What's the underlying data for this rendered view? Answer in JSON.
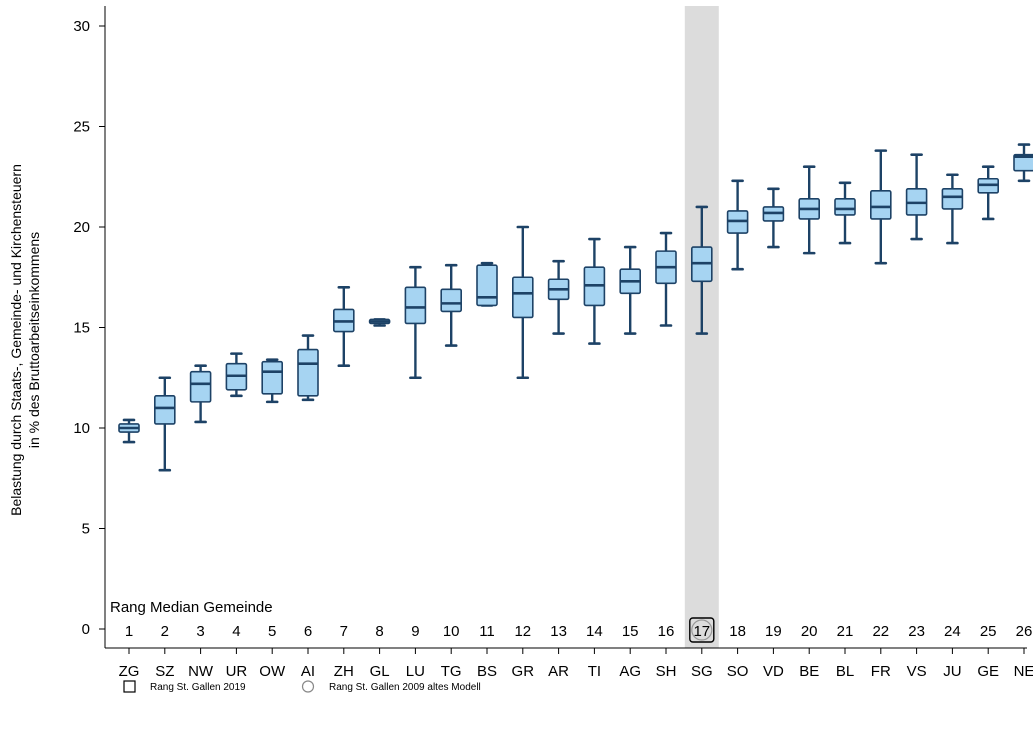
{
  "chart_data": {
    "type": "boxplot",
    "ylabel_line1": "Belastung durch Staats-, Gemeinde- und Kirchensteuern",
    "ylabel_line2": "in % des Bruttoarbeitseinkommens",
    "ylim": [
      0,
      30
    ],
    "yticks": [
      "0",
      "5",
      "10",
      "15",
      "20",
      "25",
      "30"
    ],
    "grid": false,
    "rank_header": "Rang Median Gemeinde",
    "highlight_category": "SG",
    "highlight_rank_2019": "17",
    "colors": {
      "box_fill": "#a6d4f2",
      "box_stroke": "#1d4266",
      "highlight_band": "#dcdcdc"
    },
    "categories": [
      "ZG",
      "SZ",
      "NW",
      "UR",
      "OW",
      "AI",
      "ZH",
      "GL",
      "LU",
      "TG",
      "BS",
      "GR",
      "AR",
      "TI",
      "AG",
      "SH",
      "SG",
      "SO",
      "VD",
      "BE",
      "BL",
      "FR",
      "VS",
      "JU",
      "GE",
      "NE"
    ],
    "ranks": [
      "1",
      "2",
      "3",
      "4",
      "5",
      "6",
      "7",
      "8",
      "9",
      "10",
      "11",
      "12",
      "13",
      "14",
      "15",
      "16",
      "17",
      "18",
      "19",
      "20",
      "21",
      "22",
      "23",
      "24",
      "25",
      "26"
    ],
    "boxes": [
      {
        "min": 9.3,
        "q1": 9.8,
        "median": 10.0,
        "q3": 10.2,
        "max": 10.4
      },
      {
        "min": 7.9,
        "q1": 10.2,
        "median": 11.0,
        "q3": 11.6,
        "max": 12.5
      },
      {
        "min": 10.3,
        "q1": 11.3,
        "median": 12.2,
        "q3": 12.8,
        "max": 13.1
      },
      {
        "min": 11.6,
        "q1": 11.9,
        "median": 12.6,
        "q3": 13.2,
        "max": 13.7
      },
      {
        "min": 11.3,
        "q1": 11.7,
        "median": 12.8,
        "q3": 13.3,
        "max": 13.4
      },
      {
        "min": 11.4,
        "q1": 11.6,
        "median": 13.2,
        "q3": 13.9,
        "max": 14.6
      },
      {
        "min": 13.1,
        "q1": 14.8,
        "median": 15.3,
        "q3": 15.9,
        "max": 17.0
      },
      {
        "min": 15.1,
        "q1": 15.2,
        "median": 15.3,
        "q3": 15.4,
        "max": 15.4
      },
      {
        "min": 12.5,
        "q1": 15.2,
        "median": 16.0,
        "q3": 17.0,
        "max": 18.0
      },
      {
        "min": 14.1,
        "q1": 15.8,
        "median": 16.2,
        "q3": 16.9,
        "max": 18.1
      },
      {
        "min": 16.1,
        "q1": 16.1,
        "median": 16.5,
        "q3": 18.1,
        "max": 18.2
      },
      {
        "min": 12.5,
        "q1": 15.5,
        "median": 16.7,
        "q3": 17.5,
        "max": 20.0
      },
      {
        "min": 14.7,
        "q1": 16.4,
        "median": 16.9,
        "q3": 17.4,
        "max": 18.3
      },
      {
        "min": 14.2,
        "q1": 16.1,
        "median": 17.1,
        "q3": 18.0,
        "max": 19.4
      },
      {
        "min": 14.7,
        "q1": 16.7,
        "median": 17.3,
        "q3": 17.9,
        "max": 19.0
      },
      {
        "min": 15.1,
        "q1": 17.2,
        "median": 18.0,
        "q3": 18.8,
        "max": 19.7
      },
      {
        "min": 14.7,
        "q1": 17.3,
        "median": 18.2,
        "q3": 19.0,
        "max": 21.0
      },
      {
        "min": 17.9,
        "q1": 19.7,
        "median": 20.3,
        "q3": 20.8,
        "max": 22.3
      },
      {
        "min": 19.0,
        "q1": 20.3,
        "median": 20.7,
        "q3": 21.0,
        "max": 21.9
      },
      {
        "min": 18.7,
        "q1": 20.4,
        "median": 20.9,
        "q3": 21.4,
        "max": 23.0
      },
      {
        "min": 19.2,
        "q1": 20.6,
        "median": 20.9,
        "q3": 21.4,
        "max": 22.2
      },
      {
        "min": 18.2,
        "q1": 20.4,
        "median": 21.0,
        "q3": 21.8,
        "max": 23.8
      },
      {
        "min": 19.4,
        "q1": 20.6,
        "median": 21.2,
        "q3": 21.9,
        "max": 23.6
      },
      {
        "min": 19.2,
        "q1": 20.9,
        "median": 21.5,
        "q3": 21.9,
        "max": 22.6
      },
      {
        "min": 20.4,
        "q1": 21.7,
        "median": 22.1,
        "q3": 22.4,
        "max": 23.0
      },
      {
        "min": 22.3,
        "q1": 22.8,
        "median": 23.5,
        "q3": 23.6,
        "max": 24.1
      }
    ],
    "legend": [
      {
        "symbol": "square",
        "label": "Rang St. Gallen 2019"
      },
      {
        "symbol": "circle",
        "label": "Rang St. Gallen 2009 altes Modell"
      }
    ]
  }
}
